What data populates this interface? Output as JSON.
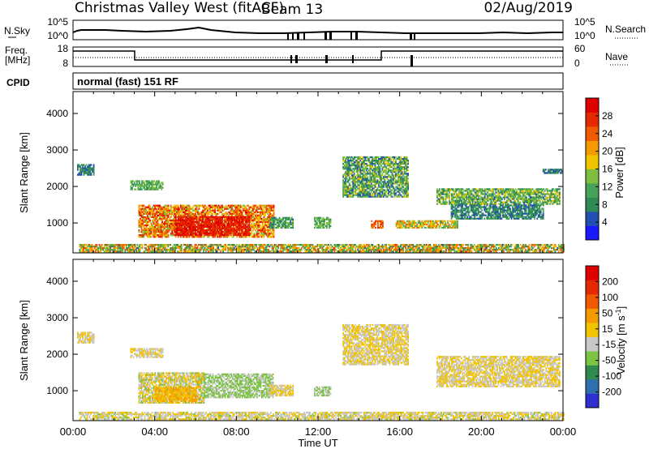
{
  "header": {
    "station": "Christmas Valley West (fitACF)",
    "beam": "Beam 13",
    "date": "02/Aug/2019"
  },
  "nsky_panel": {
    "left_label": "N.Sky",
    "right_label": "N.Search",
    "left_ticks": [
      "10^5",
      "10^0"
    ],
    "right_ticks": [
      "10^5",
      "10^0"
    ]
  },
  "freq_panel": {
    "left_label_line1": "Freq.",
    "left_label_line2": "[MHz]",
    "right_label": "Nave",
    "left_ticks": [
      "18",
      "8"
    ],
    "right_ticks": [
      "60",
      "0"
    ]
  },
  "cpid_panel": {
    "label": "CPID",
    "mode_text": "normal (fast) 151 RF"
  },
  "colors": {
    "power_scale": [
      "#1a1aff",
      "#234fb0",
      "#2f8a55",
      "#48a35a",
      "#7fbf3f",
      "#f2c400",
      "#f59a00",
      "#f05a00",
      "#e62a00",
      "#e00000"
    ],
    "velocity_scale": [
      "#3030d0",
      "#2f6fb0",
      "#2f8a50",
      "#7cc444",
      "#c8c8c8",
      "#f2c400",
      "#f59a00",
      "#f05a00",
      "#e62a00",
      "#e00000"
    ]
  },
  "chart_data": [
    {
      "type": "heatmap",
      "panel": "power",
      "xlabel": "Time UT",
      "ylabel": "Slant Range [km]",
      "colorbar_label": "Power [dB]",
      "colorbar_ticks": [
        "28",
        "24",
        "20",
        "16",
        "12",
        "8",
        "4"
      ],
      "x_ticks": [
        "00:00",
        "04:00",
        "08:00",
        "12:00",
        "16:00",
        "20:00",
        "00:00"
      ],
      "y_ticks": [
        "1000",
        "2000",
        "3000",
        "4000"
      ],
      "xlim_hours": [
        0,
        24
      ],
      "ylim_km": [
        180,
        4600
      ],
      "clim_db": [
        0,
        32
      ],
      "regions": [
        {
          "t": [
            0.3,
            24.0
          ],
          "r": [
            200,
            420
          ],
          "v": [
            6,
            26
          ]
        },
        {
          "t": [
            3.2,
            9.8
          ],
          "r": [
            600,
            1500
          ],
          "v": [
            14,
            30
          ]
        },
        {
          "t": [
            5.0,
            8.6
          ],
          "r": [
            650,
            1150
          ],
          "v": [
            26,
            31
          ]
        },
        {
          "t": [
            9.6,
            10.8
          ],
          "r": [
            850,
            1150
          ],
          "v": [
            6,
            14
          ]
        },
        {
          "t": [
            11.8,
            12.6
          ],
          "r": [
            850,
            1150
          ],
          "v": [
            8,
            16
          ]
        },
        {
          "t": [
            14.6,
            15.2
          ],
          "r": [
            850,
            1050
          ],
          "v": [
            22,
            28
          ]
        },
        {
          "t": [
            15.8,
            18.8
          ],
          "r": [
            850,
            1050
          ],
          "v": [
            10,
            24
          ]
        },
        {
          "t": [
            13.2,
            16.4
          ],
          "r": [
            1700,
            2800
          ],
          "v": [
            4,
            18
          ]
        },
        {
          "t": [
            17.8,
            23.8
          ],
          "r": [
            1500,
            1950
          ],
          "v": [
            6,
            18
          ]
        },
        {
          "t": [
            18.5,
            23.0
          ],
          "r": [
            1100,
            1500
          ],
          "v": [
            4,
            12
          ]
        },
        {
          "t": [
            2.8,
            4.4
          ],
          "r": [
            1900,
            2150
          ],
          "v": [
            8,
            16
          ]
        },
        {
          "t": [
            0.2,
            1.0
          ],
          "r": [
            2300,
            2600
          ],
          "v": [
            4,
            10
          ]
        },
        {
          "t": [
            23.0,
            23.9
          ],
          "r": [
            2350,
            2450
          ],
          "v": [
            4,
            10
          ]
        }
      ]
    },
    {
      "type": "heatmap",
      "panel": "velocity",
      "xlabel": "Time UT",
      "ylabel": "Slant Range [km]",
      "colorbar_label": "Velocity [m s-1]",
      "colorbar_ticks": [
        "200",
        "100",
        "50",
        "15",
        "-15",
        "-50",
        "-100",
        "-200"
      ],
      "x_ticks": [
        "00:00",
        "04:00",
        "08:00",
        "12:00",
        "16:00",
        "20:00",
        "00:00"
      ],
      "y_ticks": [
        "1000",
        "2000",
        "3000",
        "4000"
      ],
      "xlim_hours": [
        0,
        24
      ],
      "ylim_km": [
        180,
        4600
      ],
      "clim_ms": [
        -250,
        250
      ],
      "regions": [
        {
          "t": [
            0.3,
            24.0
          ],
          "r": [
            200,
            420
          ],
          "v": [
            -60,
            40
          ]
        },
        {
          "t": [
            3.2,
            6.4
          ],
          "r": [
            650,
            1500
          ],
          "v": [
            -80,
            60
          ]
        },
        {
          "t": [
            4.0,
            6.0
          ],
          "r": [
            700,
            1100
          ],
          "v": [
            20,
            80
          ]
        },
        {
          "t": [
            6.4,
            9.8
          ],
          "r": [
            800,
            1450
          ],
          "v": [
            -100,
            -20
          ]
        },
        {
          "t": [
            9.6,
            10.8
          ],
          "r": [
            850,
            1150
          ],
          "v": [
            -10,
            10
          ]
        },
        {
          "t": [
            11.8,
            12.6
          ],
          "r": [
            850,
            1100
          ],
          "v": [
            -80,
            -30
          ]
        },
        {
          "t": [
            13.2,
            16.4
          ],
          "r": [
            1700,
            2800
          ],
          "v": [
            -15,
            15
          ]
        },
        {
          "t": [
            17.8,
            23.8
          ],
          "r": [
            1100,
            1950
          ],
          "v": [
            -15,
            15
          ]
        },
        {
          "t": [
            2.8,
            4.4
          ],
          "r": [
            1900,
            2150
          ],
          "v": [
            -10,
            10
          ]
        },
        {
          "t": [
            0.2,
            1.0
          ],
          "r": [
            2300,
            2600
          ],
          "v": [
            -10,
            10
          ]
        }
      ]
    }
  ]
}
